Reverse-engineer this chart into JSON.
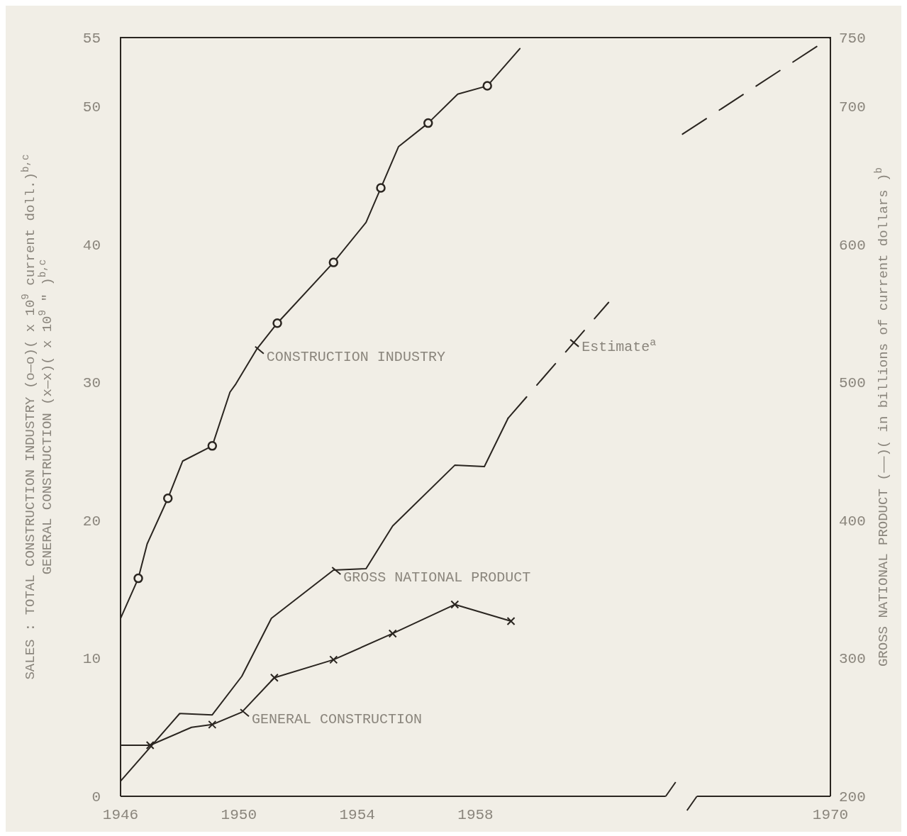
{
  "chart_data": {
    "type": "line",
    "ylabel": "SALES : TOTAL CONSTRUCTION INDUSTRY (o—o)( x 10$^{9}$ current doll.)$^{b,c}$\nGENERAL CONSTRUCTION (x—x)( x 10$^{9}$  \"  )$^{b,c}$",
    "y2label": "GROSS NATIONAL PRODUCT (——)( in billions of current dollars )$^{b}$",
    "xlim": [
      1946,
      1970
    ],
    "xticks": [
      1946,
      1950,
      1954,
      1958,
      1970
    ],
    "ylim": [
      0,
      55
    ],
    "yticks": [
      0,
      10,
      20,
      30,
      40,
      50,
      55
    ],
    "y2lim": [
      200,
      750
    ],
    "y2ticks": [
      200,
      300,
      400,
      500,
      600,
      700,
      750
    ],
    "series": [
      {
        "name": "CONSTRUCTION INDUSTRY",
        "color": "#2a2520",
        "marker": "none",
        "x": [
          1946.0,
          1946.6,
          1946.9,
          1947.6,
          1948.1,
          1949.1,
          1949.7,
          1949.9,
          1950.6,
          1951.3,
          1953.2,
          1954.3,
          1954.8,
          1955.4,
          1956.4,
          1957.4,
          1958.4,
          1959.5
        ],
        "values": [
          12.9,
          15.8,
          18.3,
          21.6,
          24.3,
          25.4,
          29.3,
          29.9,
          32.4,
          34.3,
          38.7,
          41.6,
          44.1,
          47.1,
          48.8,
          50.9,
          51.5,
          54.2
        ]
      },
      {
        "type": "scatter",
        "color": "#2a2520",
        "marker": "circle",
        "x": [
          1946.6,
          1947.6,
          1949.1,
          1951.3,
          1953.2,
          1954.8,
          1956.4,
          1958.4
        ],
        "values": [
          15.8,
          21.6,
          25.4,
          34.3,
          38.7,
          44.1,
          48.8,
          51.5
        ]
      },
      {
        "name": "GENERAL CONSTRUCTION",
        "color": "#2a2520",
        "marker": "none",
        "x": [
          1946.0,
          1947.0,
          1948.4,
          1949.1,
          1950.1,
          1951.2,
          1953.2,
          1955.2,
          1957.3,
          1959.2
        ],
        "values": [
          3.7,
          3.7,
          5.0,
          5.2,
          6.1,
          8.6,
          9.9,
          11.8,
          13.9,
          12.7
        ]
      },
      {
        "type": "scatter",
        "color": "#2a2520",
        "marker": "cross",
        "x": [
          1947.0,
          1949.1,
          1951.2,
          1953.2,
          1955.2,
          1957.3,
          1959.2
        ],
        "values": [
          3.7,
          5.2,
          8.6,
          9.9,
          11.8,
          13.9,
          12.7
        ]
      },
      {
        "name": "GROSS NATIONAL PRODUCT",
        "axis": "y2",
        "color": "#2a2520",
        "marker": "none",
        "x": [
          1946.0,
          1948.0,
          1949.1,
          1950.1,
          1951.1,
          1953.2,
          1954.3,
          1955.2,
          1957.3,
          1958.3,
          1959.1
        ],
        "values": [
          211,
          260,
          259,
          287,
          329,
          364,
          365,
          396,
          440,
          439,
          474
        ]
      },
      {
        "axis": "y2",
        "color": "#2a2520",
        "marker": "none",
        "line_style": "dashed",
        "x": [
          1959.1,
          1962.5,
          1964.5,
          1965.0,
          1970.0
        ],
        "values": [
          474,
          558,
          null,
          680,
          750
        ]
      }
    ],
    "annotations": [
      {
        "text": "Estimate$^{a}$",
        "x": 1961.3,
        "y": 32.8
      }
    ]
  }
}
